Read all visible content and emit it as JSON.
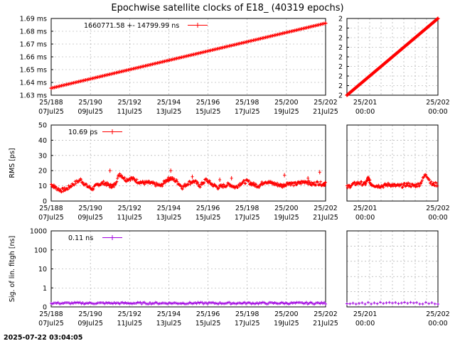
{
  "title": "Epochwise satellite clocks of E18_ (40319 epochs)",
  "timestamp": "2025-07-22 03:04:05",
  "colors": {
    "red": "#ff0000",
    "purple": "#a000e0",
    "grid": "#a0a0a0"
  },
  "chart_data": [
    {
      "type": "scatter",
      "panel": "clock-main",
      "ylabel": "",
      "ylim": [
        1.63,
        1.69
      ],
      "y_ticks": [
        "1.63 ms",
        "1.64 ms",
        "1.65 ms",
        "1.66 ms",
        "1.67 ms",
        "1.68 ms",
        "1.69 ms"
      ],
      "x_ticks": [
        "25/188\n07Jul25",
        "25/190\n09Jul25",
        "25/192\n11Jul25",
        "25/194\n13Jul25",
        "25/196\n15Jul25",
        "25/198\n17Jul25",
        "25/200\n19Jul25",
        "25/202\n21Jul25"
      ],
      "legend": "1660771.58 +-    14799.99 ns",
      "series": [
        {
          "color": "#ff0000",
          "x": [
            188,
            202
          ],
          "y": [
            1.6355,
            1.6863
          ]
        }
      ]
    },
    {
      "type": "scatter",
      "panel": "clock-zoom",
      "y_ticks": [
        "2",
        "2",
        "2",
        "2",
        "2",
        "2",
        "2",
        "2",
        "2"
      ],
      "x_ticks": [
        "25/201\n00:00",
        "25/202\n00:00"
      ],
      "series": [
        {
          "color": "#ff0000",
          "x": [
            200.7,
            202.2
          ],
          "y": [
            0,
            1
          ]
        }
      ]
    },
    {
      "type": "scatter",
      "panel": "rms-main",
      "ylabel": "RMS [ps]",
      "ylim": [
        0,
        50
      ],
      "y_ticks": [
        "0",
        "10",
        "20",
        "30",
        "40",
        "50"
      ],
      "x_ticks": [
        "25/188\n07Jul25",
        "25/190\n09Jul25",
        "25/192\n11Jul25",
        "25/194\n13Jul25",
        "25/196\n15Jul25",
        "25/198\n17Jul25",
        "25/200\n19Jul25",
        "25/202\n21Jul25"
      ],
      "legend": "10.69 ps",
      "series": [
        {
          "color": "#ff0000",
          "x": [
            188.0,
            188.2,
            188.5,
            188.8,
            189.1,
            189.5,
            189.8,
            190.1,
            190.4,
            190.7,
            191.0,
            191.2,
            191.5,
            191.8,
            192.1,
            192.4,
            192.7,
            193.0,
            193.3,
            193.6,
            193.9,
            194.1,
            194.4,
            194.7,
            195.0,
            195.3,
            195.6,
            195.9,
            196.2,
            196.5,
            196.8,
            197.1,
            197.4,
            197.7,
            198.0,
            198.3,
            198.6,
            198.9,
            199.2,
            199.5,
            199.8,
            200.1,
            200.4,
            200.7,
            201.0,
            201.3,
            201.6,
            201.9,
            202.0
          ],
          "y": [
            11,
            9,
            7,
            8,
            11,
            14,
            10,
            8,
            11,
            12,
            10,
            10,
            18,
            14,
            15,
            13,
            12,
            12,
            11,
            10,
            14,
            15,
            13,
            9,
            12,
            13,
            10,
            14,
            11,
            9,
            10,
            11,
            9,
            12,
            13,
            11,
            10,
            13,
            12,
            11,
            10,
            12,
            11,
            12,
            13,
            11,
            12,
            11,
            12
          ]
        },
        {
          "color": "#ff0000",
          "x": [
            191.0,
            194.1,
            195.2,
            196.6,
            197.2,
            199.9,
            201.1,
            201.7
          ],
          "y": [
            20,
            20,
            16,
            14,
            15,
            17,
            15,
            19
          ]
        }
      ]
    },
    {
      "type": "scatter",
      "panel": "rms-zoom",
      "x_ticks": [
        "25/201\n00:00",
        "25/202\n00:00"
      ],
      "series": [
        {
          "color": "#ff0000",
          "x": [
            200.7,
            200.8,
            200.9,
            201.0,
            201.05,
            201.1,
            201.2,
            201.3,
            201.4,
            201.5,
            201.6,
            201.7,
            201.8,
            201.9,
            202.0,
            202.1,
            202.2
          ],
          "y": [
            9,
            11,
            12,
            11,
            15,
            11,
            10,
            10,
            11,
            10,
            10,
            11,
            10,
            11,
            18,
            11,
            11
          ]
        }
      ]
    },
    {
      "type": "scatter",
      "panel": "sig-main",
      "ylabel": "Sig. of lin. fitgh [ns]",
      "yscale": "log-like",
      "y_ticks": [
        "0",
        "1",
        "10",
        "100",
        "1000"
      ],
      "x_ticks": [
        "25/188\n07Jul25",
        "25/190\n09Jul25",
        "25/192\n11Jul25",
        "25/194\n13Jul25",
        "25/196\n15Jul25",
        "25/198\n17Jul25",
        "25/200\n19Jul25",
        "25/202\n21Jul25"
      ],
      "legend": "0.11 ns",
      "series": [
        {
          "color": "#a000e0",
          "x": [
            188.0,
            202.0
          ],
          "y": [
            0.11,
            0.11
          ]
        }
      ]
    },
    {
      "type": "scatter",
      "panel": "sig-zoom",
      "x_ticks": [
        "25/201\n00:00",
        "25/202\n00:00"
      ],
      "series": [
        {
          "color": "#a000e0",
          "x": [
            200.7,
            202.2
          ],
          "y": [
            0.11,
            0.11
          ]
        }
      ]
    }
  ]
}
